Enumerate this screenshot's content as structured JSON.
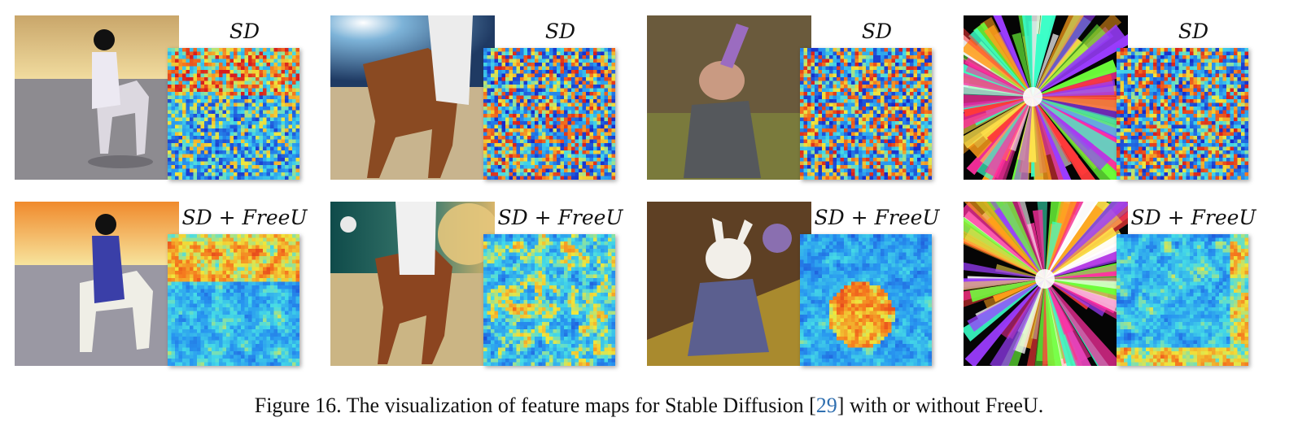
{
  "rows": [
    {
      "label": "SD",
      "panels": [
        {
          "id": "astronaut-horse",
          "map": "a1"
        },
        {
          "id": "horse-astronaut-desert",
          "map": "b1"
        },
        {
          "id": "rabbit-wizard",
          "map": "c1"
        },
        {
          "id": "color-explosion",
          "map": "d1"
        }
      ]
    },
    {
      "label": "SD + FreeU",
      "panels": [
        {
          "id": "astronaut-horse",
          "map": "a2"
        },
        {
          "id": "horse-astronaut-desert",
          "map": "b2"
        },
        {
          "id": "rabbit-wizard",
          "map": "c2"
        },
        {
          "id": "color-explosion",
          "map": "d2"
        }
      ]
    }
  ],
  "caption": {
    "prefix": "Figure 16. The visualization of feature maps for Stable Diffusion [",
    "citation": "29",
    "suffix": "] with or without FreeU."
  },
  "colors": {
    "citation": "#2f6fb0",
    "heatmap_low": "#1a3bd0",
    "heatmap_mid": "#3ad6e6",
    "heatmap_high": "#e8321c"
  }
}
